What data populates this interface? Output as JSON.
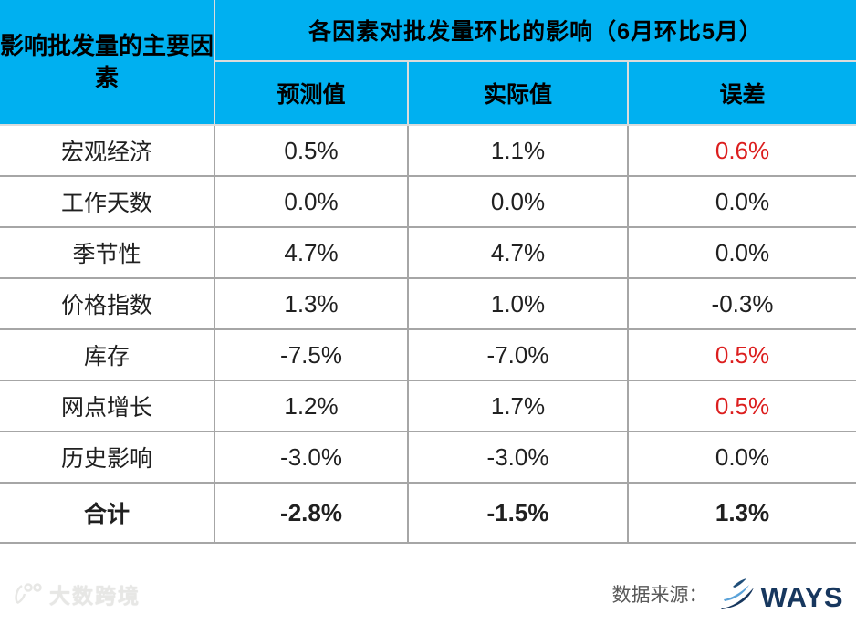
{
  "colors": {
    "header_bg": "#00B0F0",
    "error_red": "#DC1E1E",
    "ways_navy": "#17375E",
    "grid_gray": "#a6a6a6"
  },
  "chart_data": {
    "type": "table",
    "title": "各因素对批发量环比的影响（6月环比5月）",
    "row_header": "影响批发量的主要因素",
    "columns": [
      "预测值",
      "实际值",
      "误差"
    ],
    "rows": [
      {
        "label": "宏观经济",
        "forecast": "0.5%",
        "actual": "1.1%",
        "error": "0.6%",
        "error_red": true
      },
      {
        "label": "工作天数",
        "forecast": "0.0%",
        "actual": "0.0%",
        "error": "0.0%",
        "error_red": false
      },
      {
        "label": "季节性",
        "forecast": "4.7%",
        "actual": "4.7%",
        "error": "0.0%",
        "error_red": false
      },
      {
        "label": "价格指数",
        "forecast": "1.3%",
        "actual": "1.0%",
        "error": "-0.3%",
        "error_red": false
      },
      {
        "label": "库存",
        "forecast": "-7.5%",
        "actual": "-7.0%",
        "error": "0.5%",
        "error_red": true
      },
      {
        "label": "网点增长",
        "forecast": "1.2%",
        "actual": "1.7%",
        "error": "0.5%",
        "error_red": true
      },
      {
        "label": "历史影响",
        "forecast": "-3.0%",
        "actual": "-3.0%",
        "error": "0.0%",
        "error_red": false
      }
    ],
    "total": {
      "label": "合计",
      "forecast": "-2.8%",
      "actual": "-1.5%",
      "error": "1.3%",
      "error_red": false
    }
  },
  "footer": {
    "watermark_text": "大数跨境",
    "source_label": "数据来源：",
    "source_brand": "WAYS"
  }
}
